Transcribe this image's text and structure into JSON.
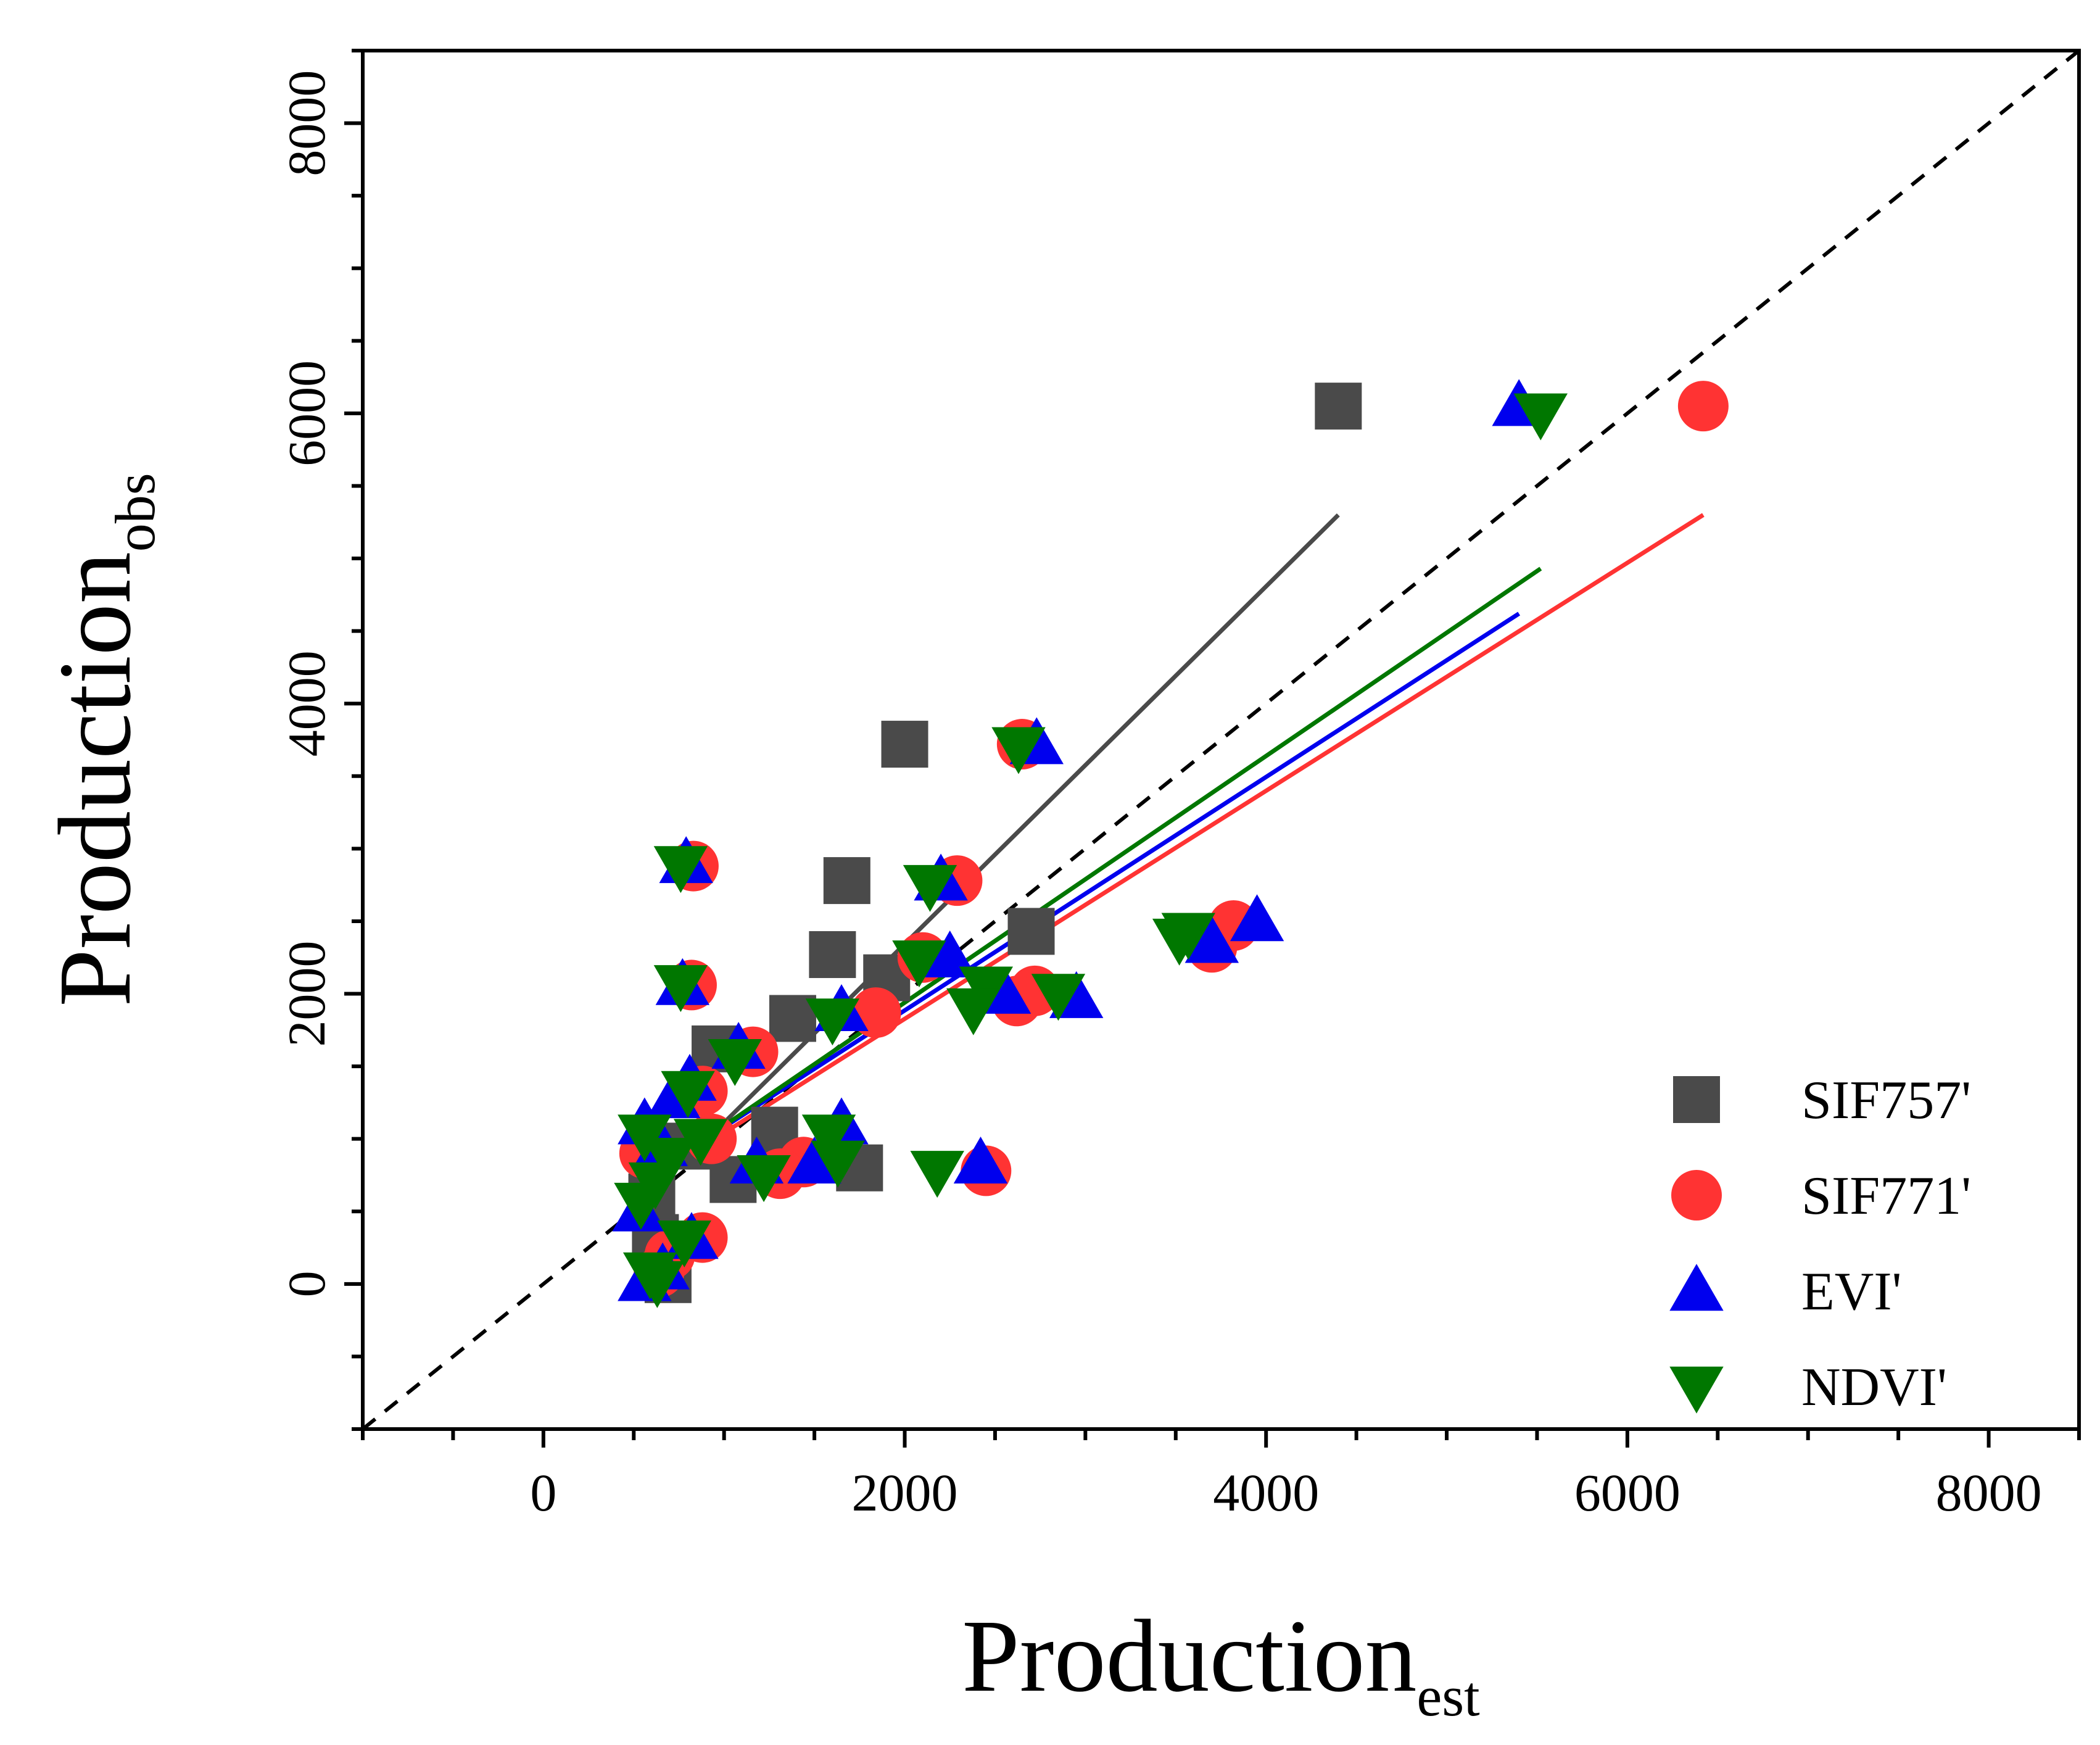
{
  "chart_data": {
    "type": "scatter",
    "title": "",
    "xlabel": {
      "main": "Production",
      "sub": "est"
    },
    "ylabel": {
      "main": "Production",
      "sub": "obs"
    },
    "xlim": [
      -1000,
      8500
    ],
    "ylim": [
      -1000,
      8500
    ],
    "x_ticks": [
      0,
      2000,
      4000,
      6000,
      8000
    ],
    "y_ticks": [
      0,
      2000,
      4000,
      6000,
      8000
    ],
    "x_tick_labels": [
      "0",
      "2000",
      "4000",
      "6000",
      "8000"
    ],
    "y_tick_labels": [
      "0",
      "2000",
      "4000",
      "6000",
      "8000"
    ],
    "grid": false,
    "legend_position": "bottom-right",
    "reference_line": {
      "style": "dashed",
      "color": "#000000",
      "from": [
        -1000,
        -1000
      ],
      "to": [
        8500,
        8500
      ]
    },
    "series": [
      {
        "name": "SIF757'",
        "marker": "square",
        "color": "#4a4a4a",
        "fit_line": {
          "from": [
            950,
            1050
          ],
          "to": [
            4400,
            5300
          ]
        },
        "points": [
          [
            4400,
            6050
          ],
          [
            2000,
            3720
          ],
          [
            1680,
            2780
          ],
          [
            1600,
            2270
          ],
          [
            1900,
            2110
          ],
          [
            2700,
            2430
          ],
          [
            1380,
            1830
          ],
          [
            950,
            1620
          ],
          [
            1280,
            1060
          ],
          [
            1750,
            800
          ],
          [
            1050,
            720
          ],
          [
            620,
            320
          ],
          [
            650,
            150
          ],
          [
            690,
            30
          ],
          [
            800,
            950
          ],
          [
            600,
            600
          ]
        ]
      },
      {
        "name": "SIF771'",
        "marker": "circle",
        "color": "#ff3333",
        "fit_line": {
          "from": [
            820,
            900
          ],
          "to": [
            6420,
            5300
          ]
        },
        "points": [
          [
            6420,
            6050
          ],
          [
            2650,
            3720
          ],
          [
            830,
            2880
          ],
          [
            2290,
            2780
          ],
          [
            820,
            2060
          ],
          [
            1840,
            1870
          ],
          [
            2100,
            2250
          ],
          [
            2720,
            2020
          ],
          [
            2620,
            1950
          ],
          [
            3700,
            2320
          ],
          [
            3820,
            2470
          ],
          [
            1160,
            1600
          ],
          [
            880,
            1330
          ],
          [
            1440,
            840
          ],
          [
            1310,
            760
          ],
          [
            2450,
            780
          ],
          [
            880,
            320
          ],
          [
            700,
            200
          ],
          [
            640,
            80
          ],
          [
            560,
            900
          ],
          [
            930,
            1000
          ]
        ]
      },
      {
        "name": "EVI'",
        "marker": "triangle-up",
        "color": "#0000ee",
        "fit_line": {
          "from": [
            800,
            920
          ],
          "to": [
            5400,
            4620
          ]
        },
        "points": [
          [
            5400,
            6050
          ],
          [
            2730,
            3720
          ],
          [
            790,
            2900
          ],
          [
            2200,
            2780
          ],
          [
            770,
            2060
          ],
          [
            1650,
            1880
          ],
          [
            2250,
            2250
          ],
          [
            2550,
            2000
          ],
          [
            2950,
            1970
          ],
          [
            3700,
            2350
          ],
          [
            3950,
            2500
          ],
          [
            1080,
            1620
          ],
          [
            810,
            1400
          ],
          [
            720,
            1280
          ],
          [
            560,
            1100
          ],
          [
            1650,
            1100
          ],
          [
            1500,
            830
          ],
          [
            2420,
            830
          ],
          [
            1180,
            830
          ],
          [
            820,
            310
          ],
          [
            660,
            100
          ],
          [
            560,
            20
          ],
          [
            530,
            500
          ],
          [
            650,
            950
          ]
        ]
      },
      {
        "name": "NDVI'",
        "marker": "triangle-down",
        "color": "#007700",
        "fit_line": {
          "from": [
            800,
            920
          ],
          "to": [
            5520,
            4930
          ]
        },
        "points": [
          [
            5520,
            6000
          ],
          [
            2630,
            3700
          ],
          [
            760,
            2880
          ],
          [
            2140,
            2750
          ],
          [
            760,
            2060
          ],
          [
            1600,
            1830
          ],
          [
            2080,
            2230
          ],
          [
            2450,
            2050
          ],
          [
            2380,
            1900
          ],
          [
            2850,
            2000
          ],
          [
            3570,
            2420
          ],
          [
            3520,
            2380
          ],
          [
            1060,
            1550
          ],
          [
            800,
            1330
          ],
          [
            560,
            1030
          ],
          [
            1580,
            1030
          ],
          [
            1630,
            850
          ],
          [
            2180,
            780
          ],
          [
            1220,
            750
          ],
          [
            780,
            300
          ],
          [
            590,
            80
          ],
          [
            630,
            20
          ],
          [
            540,
            560
          ],
          [
            700,
            870
          ],
          [
            620,
            700
          ],
          [
            870,
            1000
          ]
        ]
      }
    ]
  }
}
